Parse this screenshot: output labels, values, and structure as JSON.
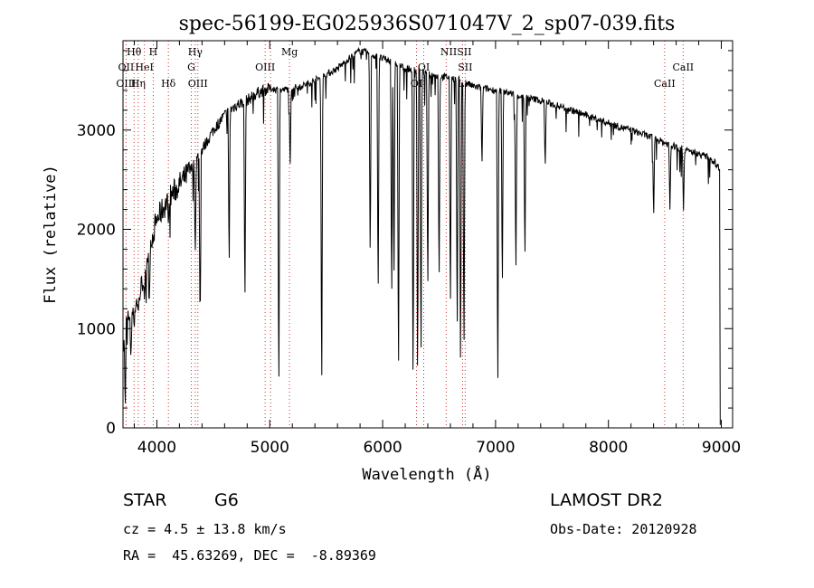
{
  "chart_data": {
    "type": "line",
    "title": "spec-56199-EG025936S071047V_2_sp07-039.fits",
    "xlabel": "Wavelength (Å)",
    "ylabel": "Flux (relative)",
    "xlim": [
      3700,
      9100
    ],
    "ylim": [
      0,
      3900
    ],
    "xticks": [
      4000,
      5000,
      6000,
      7000,
      8000,
      9000
    ],
    "yticks": [
      0,
      1000,
      2000,
      3000
    ],
    "grid": false,
    "continuum": [
      [
        3705,
        900
      ],
      [
        3730,
        1150
      ],
      [
        3760,
        1050
      ],
      [
        3800,
        1250
      ],
      [
        3850,
        1350
      ],
      [
        3900,
        1650
      ],
      [
        3950,
        1900
      ],
      [
        4000,
        2100
      ],
      [
        4100,
        2300
      ],
      [
        4200,
        2450
      ],
      [
        4300,
        2600
      ],
      [
        4400,
        2800
      ],
      [
        4500,
        3000
      ],
      [
        4600,
        3150
      ],
      [
        4700,
        3250
      ],
      [
        4800,
        3300
      ],
      [
        4900,
        3380
      ],
      [
        5000,
        3420
      ],
      [
        5100,
        3400
      ],
      [
        5200,
        3420
      ],
      [
        5300,
        3450
      ],
      [
        5400,
        3500
      ],
      [
        5500,
        3560
      ],
      [
        5600,
        3620
      ],
      [
        5700,
        3720
      ],
      [
        5800,
        3800
      ],
      [
        5900,
        3760
      ],
      [
        6000,
        3720
      ],
      [
        6100,
        3680
      ],
      [
        6200,
        3620
      ],
      [
        6300,
        3600
      ],
      [
        6400,
        3560
      ],
      [
        6500,
        3540
      ],
      [
        6600,
        3530
      ],
      [
        6700,
        3500
      ],
      [
        6800,
        3440
      ],
      [
        6900,
        3420
      ],
      [
        7000,
        3400
      ],
      [
        7100,
        3380
      ],
      [
        7200,
        3350
      ],
      [
        7300,
        3320
      ],
      [
        7400,
        3300
      ],
      [
        7500,
        3260
      ],
      [
        7600,
        3230
      ],
      [
        7700,
        3190
      ],
      [
        7800,
        3150
      ],
      [
        7900,
        3110
      ],
      [
        8000,
        3070
      ],
      [
        8100,
        3030
      ],
      [
        8200,
        3000
      ],
      [
        8300,
        2960
      ],
      [
        8400,
        2920
      ],
      [
        8500,
        2870
      ],
      [
        8600,
        2830
      ],
      [
        8700,
        2790
      ],
      [
        8800,
        2760
      ],
      [
        8900,
        2720
      ],
      [
        8985,
        2620
      ],
      [
        8990,
        30
      ]
    ],
    "absorption_lines": [
      [
        3720,
        150
      ],
      [
        3735,
        1100
      ],
      [
        3770,
        700
      ],
      [
        3800,
        1000
      ],
      [
        3835,
        1150
      ],
      [
        3890,
        1250
      ],
      [
        3933,
        1300
      ],
      [
        3968,
        1850
      ],
      [
        4102,
        2050
      ],
      [
        4340,
        1700
      ],
      [
        4383,
        900
      ],
      [
        4640,
        1550
      ],
      [
        4780,
        1150
      ],
      [
        5080,
        200
      ],
      [
        5180,
        2600
      ],
      [
        5460,
        200
      ],
      [
        5890,
        1600
      ],
      [
        5960,
        1200
      ],
      [
        6080,
        1150
      ],
      [
        6100,
        1350
      ],
      [
        6140,
        350
      ],
      [
        6270,
        250
      ],
      [
        6310,
        300
      ],
      [
        6340,
        500
      ],
      [
        6400,
        1250
      ],
      [
        6500,
        1350
      ],
      [
        6600,
        1050
      ],
      [
        6660,
        800
      ],
      [
        6690,
        400
      ],
      [
        6720,
        600
      ],
      [
        6880,
        2600
      ],
      [
        7020,
        200
      ],
      [
        7060,
        1300
      ],
      [
        7180,
        1450
      ],
      [
        7260,
        1600
      ],
      [
        7440,
        2600
      ],
      [
        8400,
        2080
      ],
      [
        8545,
        2200
      ],
      [
        8665,
        2190
      ]
    ],
    "lines_top": [
      {
        "label": "Hθ",
        "x": 3798,
        "row": 0
      },
      {
        "label": "H",
        "x": 3968,
        "row": 0
      },
      {
        "label": "Hγ",
        "x": 4340,
        "row": 0
      },
      {
        "label": "Mg",
        "x": 5175,
        "row": 0
      },
      {
        "label": "NIISII",
        "x": 6650,
        "row": 0
      },
      {
        "label": "OII",
        "x": 3727,
        "row": 1
      },
      {
        "label": "HeI",
        "x": 3889,
        "row": 1
      },
      {
        "label": "G",
        "x": 4305,
        "row": 1
      },
      {
        "label": "OIII",
        "x": 4959,
        "row": 1
      },
      {
        "label": "OI",
        "x": 6364,
        "row": 1
      },
      {
        "label": "SII",
        "x": 6731,
        "row": 1
      },
      {
        "label": "CaII",
        "x": 8662,
        "row": 1
      }
    ],
    "lines_bottom": [
      {
        "label": "OIII",
        "x": 3727,
        "row": 0
      },
      {
        "label": "Hη",
        "x": 3835,
        "row": 0
      },
      {
        "label": "Hδ",
        "x": 4102,
        "row": 0
      },
      {
        "label": "OIII",
        "x": 4363,
        "row": 0
      },
      {
        "label": "OI",
        "x": 6300,
        "row": 0
      },
      {
        "label": "Li",
        "x": 6708,
        "row": 0
      },
      {
        "label": "CaII",
        "x": 8498,
        "row": 0
      }
    ],
    "marker_lines": [
      3727,
      3798,
      3835,
      3889,
      3968,
      4102,
      4305,
      4340,
      4363,
      4959,
      5007,
      5175,
      6300,
      6364,
      6563,
      6708,
      6731,
      8498,
      8662
    ]
  },
  "info": {
    "class": "STAR",
    "subclass": "G6",
    "cz": "cz = 4.5 ± 13.8 km/s",
    "coords": "RA =  45.63269, DEC =  -8.89369",
    "survey": "LAMOST DR2",
    "obs_date": "Obs-Date: 20120928"
  },
  "colors": {
    "spectrum": "#000000",
    "marker_line": "#cc3333",
    "axis": "#000000"
  }
}
